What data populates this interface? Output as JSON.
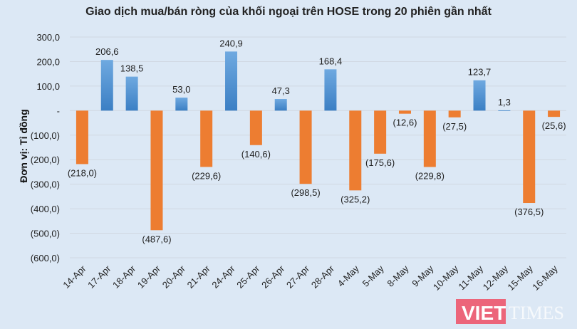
{
  "chart_data": {
    "type": "bar",
    "title": "Giao dịch mua/bán ròng của khối ngoại trên HOSE trong 20 phiên gần nhất",
    "ylabel": "Đơn vị: Tỉ đồng",
    "xlabel": "",
    "ylim": [
      -600,
      300
    ],
    "yticks": [
      300,
      200,
      100,
      0,
      -100,
      -200,
      -300,
      -400,
      -500,
      -600
    ],
    "ytick_labels": [
      "300,0",
      "200,0",
      "100,0",
      "-",
      "(100,0)",
      "(200,0)",
      "(300,0)",
      "(400,0)",
      "(500,0)",
      "(600,0)"
    ],
    "grid": true,
    "categories": [
      "14-Apr",
      "17-Apr",
      "18-Apr",
      "19-Apr",
      "20-Apr",
      "21-Apr",
      "24-Apr",
      "25-Apr",
      "26-Apr",
      "27-Apr",
      "28-Apr",
      "4-May",
      "5-May",
      "8-May",
      "9-May",
      "10-May",
      "11-May",
      "12-May",
      "15-May",
      "16-May"
    ],
    "values": [
      -218.0,
      206.6,
      138.5,
      -487.6,
      53.0,
      -229.6,
      240.9,
      -140.6,
      47.3,
      -298.5,
      168.4,
      -325.2,
      -175.6,
      -12.6,
      -229.8,
      -27.5,
      123.7,
      1.3,
      -376.5,
      -25.6
    ],
    "data_labels": [
      "(218,0)",
      "206,6",
      "138,5",
      "(487,6)",
      "53,0",
      "(229,6)",
      "240,9",
      "(140,6)",
      "47,3",
      "(298,5)",
      "168,4",
      "(325,2)",
      "(175,6)",
      "(12,6)",
      "(229,8)",
      "(27,5)",
      "123,7",
      "1,3",
      "(376,5)",
      "(25,6)"
    ],
    "colors": {
      "positive": "#4a8fd4",
      "negative": "#ed7d31",
      "background": "#dce8f5"
    }
  },
  "watermark": {
    "brand": "VIETTIMES",
    "text1": "VIET",
    "text2": "TIMES"
  }
}
